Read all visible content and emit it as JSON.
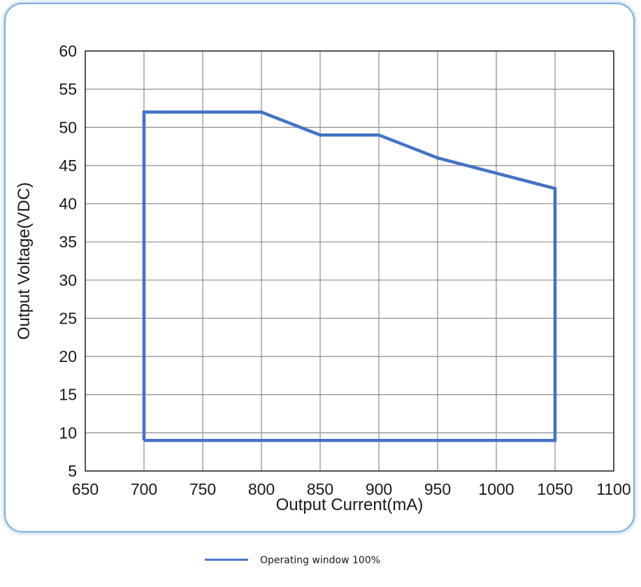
{
  "chart_data": {
    "type": "line",
    "xlabel": "Output Current(mA)",
    "ylabel": "Output Voltage(VDC)",
    "xlim": [
      650,
      1100
    ],
    "ylim": [
      5,
      60
    ],
    "x_ticks": [
      650,
      700,
      750,
      800,
      850,
      900,
      950,
      1000,
      1050,
      1100
    ],
    "y_ticks": [
      5,
      10,
      15,
      20,
      25,
      30,
      35,
      40,
      45,
      50,
      55,
      60
    ],
    "grid": true,
    "legend_position": "bottom-center",
    "series": [
      {
        "name": "Operating window 100%",
        "color": "#4472c4",
        "closed": true,
        "points": [
          {
            "x": 700,
            "y": 9
          },
          {
            "x": 700,
            "y": 52
          },
          {
            "x": 800,
            "y": 52
          },
          {
            "x": 850,
            "y": 49
          },
          {
            "x": 900,
            "y": 49
          },
          {
            "x": 950,
            "y": 46
          },
          {
            "x": 1050,
            "y": 42
          },
          {
            "x": 1050,
            "y": 9
          },
          {
            "x": 700,
            "y": 9
          }
        ]
      }
    ]
  }
}
